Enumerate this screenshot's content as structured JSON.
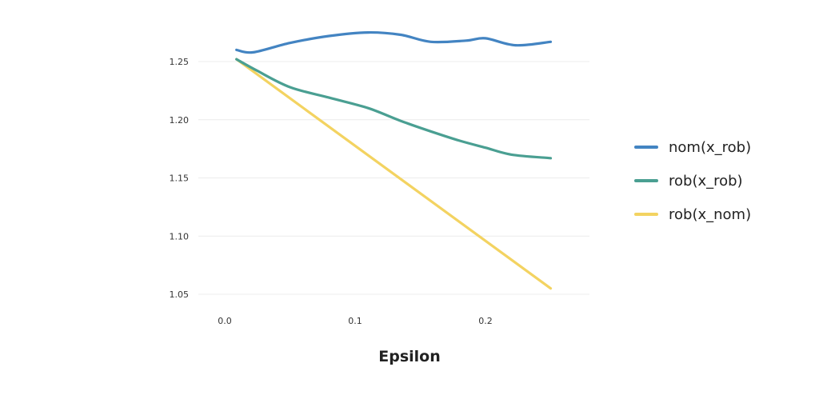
{
  "chart_data": {
    "type": "line",
    "title": "",
    "xlabel": "Epsilon",
    "ylabel": "",
    "xlim": [
      0.0,
      0.25
    ],
    "ylim": [
      1.05,
      1.26
    ],
    "x_ticks": [
      {
        "value": 0.0,
        "label": "0.0"
      },
      {
        "value": 0.1,
        "label": "0.1"
      },
      {
        "value": 0.2,
        "label": "0.2"
      }
    ],
    "y_ticks": [
      {
        "value": 1.05,
        "label": "1.05"
      },
      {
        "value": 1.1,
        "label": "1.10"
      },
      {
        "value": 1.15,
        "label": "1.15"
      },
      {
        "value": 1.2,
        "label": "1.20"
      },
      {
        "value": 1.25,
        "label": "1.25"
      }
    ],
    "grid": "horizontal",
    "legend_position": "right",
    "series": [
      {
        "name": "nom(x_rob)",
        "color": "#4384c2",
        "x": [
          0.009,
          0.022,
          0.05,
          0.08,
          0.11,
          0.135,
          0.158,
          0.185,
          0.2,
          0.223,
          0.25
        ],
        "y": [
          1.26,
          1.258,
          1.266,
          1.272,
          1.275,
          1.273,
          1.267,
          1.268,
          1.27,
          1.264,
          1.267
        ]
      },
      {
        "name": "rob(x_rob)",
        "color": "#4a9f92",
        "x": [
          0.009,
          0.025,
          0.05,
          0.08,
          0.11,
          0.135,
          0.158,
          0.18,
          0.2,
          0.22,
          0.25
        ],
        "y": [
          1.252,
          1.242,
          1.228,
          1.219,
          1.21,
          1.199,
          1.19,
          1.182,
          1.176,
          1.17,
          1.167
        ]
      },
      {
        "name": "rob(x_nom)",
        "color": "#f3d361",
        "x": [
          0.009,
          0.25
        ],
        "y": [
          1.252,
          1.055
        ]
      }
    ]
  }
}
